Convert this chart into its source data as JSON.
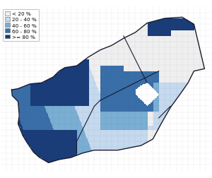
{
  "legend_labels": [
    "< 20 %",
    "20 - 40 %",
    "40 - 60 %",
    "60 - 80 %",
    ">= 80 %"
  ],
  "legend_colors": [
    "#f0f0f0",
    "#c6d9f0",
    "#7bafd4",
    "#3a6fa8",
    "#1a3d7a"
  ],
  "background_color": "#ffffff",
  "fig_width": 3.0,
  "fig_height": 2.53,
  "dpi": 100,
  "xlim": [
    15.5,
    33.5
  ],
  "ylim": [
    -35.5,
    -21.5
  ]
}
